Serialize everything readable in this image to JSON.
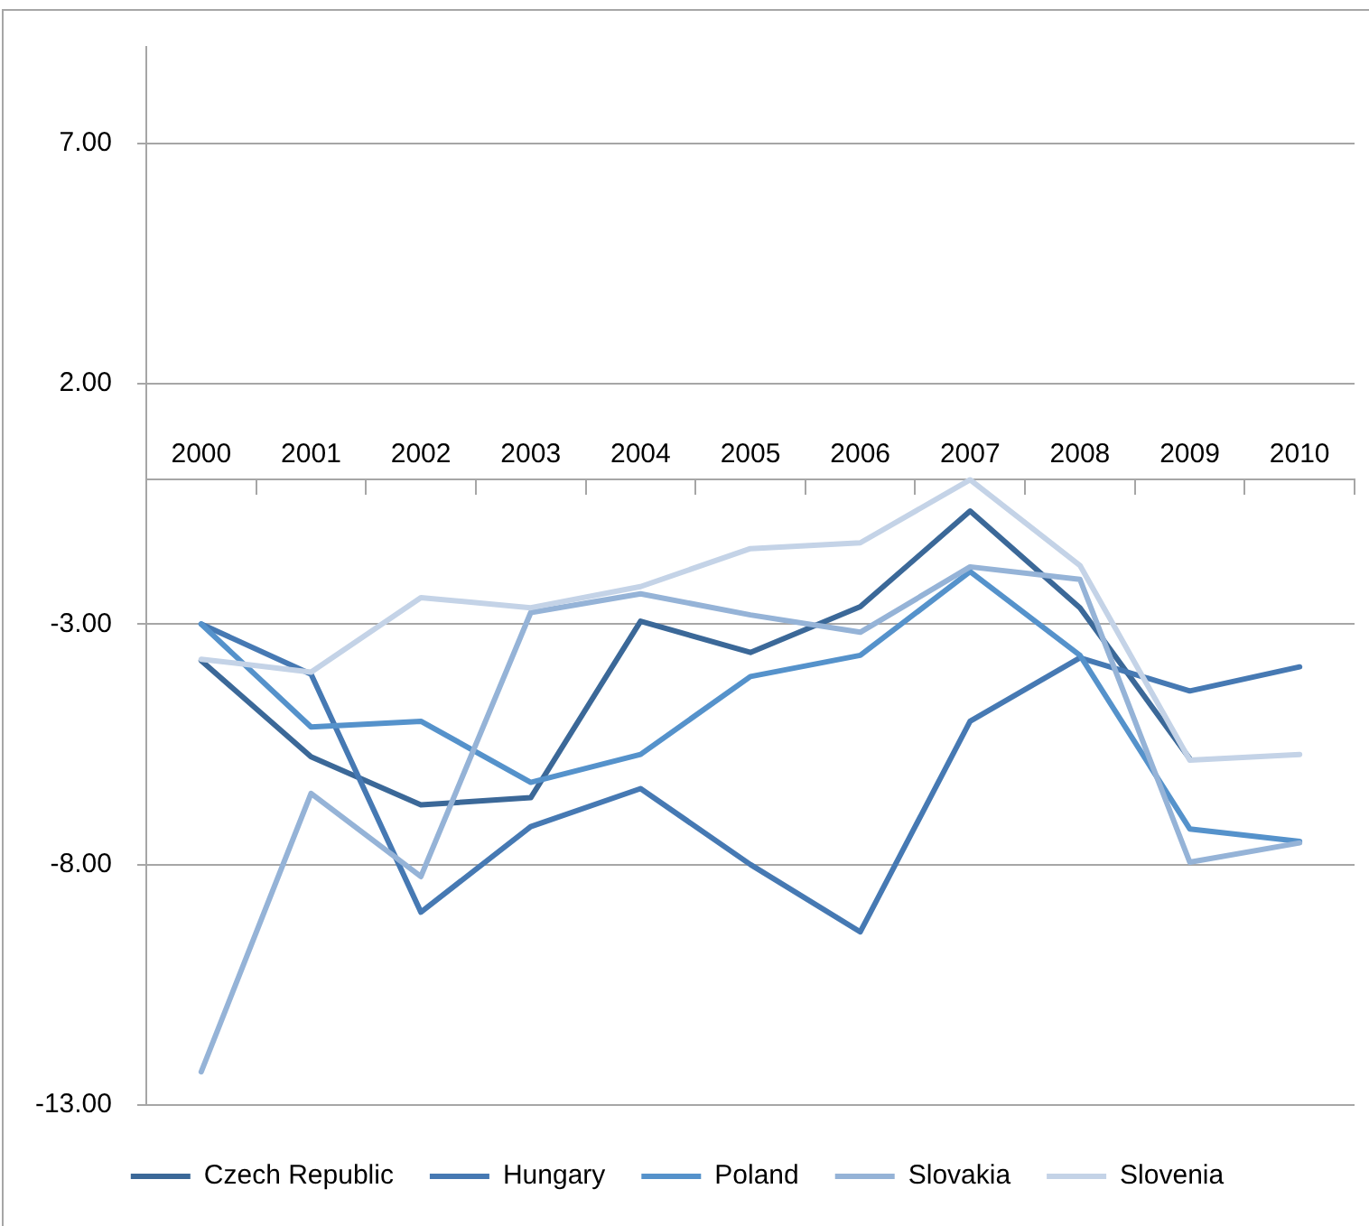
{
  "chart_data": {
    "type": "line",
    "categories": [
      "2000",
      "2001",
      "2002",
      "2003",
      "2004",
      "2005",
      "2006",
      "2007",
      "2008",
      "2009",
      "2010"
    ],
    "series": [
      {
        "name": "Czech Republic",
        "color": "#3b6898",
        "values": [
          -3.76,
          -5.76,
          -6.76,
          -6.61,
          -2.94,
          -3.59,
          -2.64,
          -0.65,
          -2.66,
          -5.8,
          null
        ]
      },
      {
        "name": "Hungary",
        "color": "#4679b3",
        "values": [
          -3.0,
          -4.04,
          -8.99,
          -7.21,
          -6.42,
          -8.0,
          -9.4,
          -5.02,
          -3.7,
          -4.39,
          -3.89
        ]
      },
      {
        "name": "Poland",
        "color": "#5592cb",
        "values": [
          -3.0,
          -5.14,
          -5.02,
          -6.29,
          -5.71,
          -4.09,
          -3.65,
          -1.91,
          -3.65,
          -7.26,
          -7.52
        ]
      },
      {
        "name": "Slovakia",
        "color": "#95b3d7",
        "values": [
          -12.31,
          -6.52,
          -8.25,
          -2.76,
          -2.37,
          -2.81,
          -3.17,
          -1.81,
          -2.07,
          -7.95,
          -7.55
        ]
      },
      {
        "name": "Slovenia",
        "color": "#c4d3e7",
        "values": [
          -3.73,
          -4.0,
          -2.45,
          -2.66,
          -2.22,
          -1.43,
          -1.31,
          0.0,
          -1.78,
          -5.83,
          -5.71
        ]
      }
    ],
    "ylim": [
      -13,
      9
    ],
    "yticks": [
      {
        "value": -13,
        "label": "-13.00"
      },
      {
        "value": -8,
        "label": "-8.00"
      },
      {
        "value": -3,
        "label": "-3.00"
      },
      {
        "value": 2,
        "label": "2.00"
      },
      {
        "value": 7,
        "label": "7.00"
      }
    ],
    "grid": "y",
    "legend": "bottom",
    "marker": "none",
    "line_style": "solid"
  }
}
